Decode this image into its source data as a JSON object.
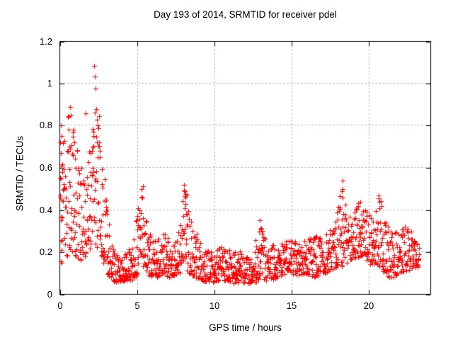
{
  "chart_data": {
    "type": "scatter",
    "title": "Day 193 of 2014, SRMTID for receiver pdel",
    "xlabel": "GPS time / hours",
    "ylabel": "SRMTID / TECUs",
    "xlim": [
      0,
      24
    ],
    "ylim": [
      0,
      1.2
    ],
    "x_ticks": [
      0,
      5,
      10,
      15,
      20
    ],
    "x_tick_labels": [
      "0",
      "5",
      "10",
      "15",
      "20"
    ],
    "y_ticks": [
      0,
      0.2,
      0.4,
      0.6,
      0.8,
      1,
      1.2
    ],
    "y_tick_labels": [
      "0",
      "0.2",
      "0.4",
      "0.6",
      "0.8",
      "1",
      "1.2"
    ],
    "grid": true,
    "legend": "none",
    "colors": {
      "marker": "#ff0000",
      "grid": "#9a9a9a",
      "axis": "#000000",
      "background": "#ffffff"
    },
    "marker": {
      "shape": "plus",
      "size": 7,
      "stroke": 1
    },
    "series": [
      {
        "name": "SRMTID receiver pdel",
        "description": "Dense 30-s scatter: high variable values 0.15-1.1 TECU during hours 0-3 (peak 1.08 near hour 2.2), quiet 0.05-0.2 hours 3-5, bursts to ~0.5 at hours 5.3 and 8.1, low 0.05-0.25 hours 9-18, broad bump 0.15-0.55 hours 18-21, tail 0.1-0.3 to hour 23.2",
        "generator": {
          "seed": 193,
          "t_start": 0.02,
          "t_end": 23.25,
          "step_hours": 0.0155,
          "skew_exponent": 1.5,
          "envelope_anchors": [
            [
              0.0,
              0.14,
              0.8
            ],
            [
              0.25,
              0.16,
              0.72
            ],
            [
              0.55,
              0.18,
              0.88
            ],
            [
              0.9,
              0.18,
              0.8
            ],
            [
              1.3,
              0.16,
              0.6
            ],
            [
              1.7,
              0.18,
              0.68
            ],
            [
              2.05,
              0.22,
              0.8
            ],
            [
              2.25,
              0.25,
              1.1
            ],
            [
              2.45,
              0.2,
              0.9
            ],
            [
              2.8,
              0.15,
              0.68
            ],
            [
              3.1,
              0.09,
              0.4
            ],
            [
              3.5,
              0.06,
              0.2
            ],
            [
              4.1,
              0.06,
              0.18
            ],
            [
              4.7,
              0.07,
              0.24
            ],
            [
              5.1,
              0.1,
              0.45
            ],
            [
              5.35,
              0.12,
              0.52
            ],
            [
              5.7,
              0.09,
              0.3
            ],
            [
              6.2,
              0.08,
              0.25
            ],
            [
              6.7,
              0.09,
              0.3
            ],
            [
              7.2,
              0.08,
              0.26
            ],
            [
              7.7,
              0.1,
              0.3
            ],
            [
              8.05,
              0.12,
              0.52
            ],
            [
              8.35,
              0.1,
              0.45
            ],
            [
              8.8,
              0.08,
              0.3
            ],
            [
              9.3,
              0.06,
              0.22
            ],
            [
              9.9,
              0.06,
              0.2
            ],
            [
              10.5,
              0.07,
              0.24
            ],
            [
              11.1,
              0.05,
              0.2
            ],
            [
              11.7,
              0.06,
              0.22
            ],
            [
              12.2,
              0.05,
              0.19
            ],
            [
              12.75,
              0.06,
              0.28
            ],
            [
              13.0,
              0.07,
              0.35
            ],
            [
              13.5,
              0.06,
              0.24
            ],
            [
              14.1,
              0.08,
              0.24
            ],
            [
              14.7,
              0.1,
              0.27
            ],
            [
              15.3,
              0.09,
              0.25
            ],
            [
              15.9,
              0.1,
              0.26
            ],
            [
              16.5,
              0.08,
              0.28
            ],
            [
              17.1,
              0.1,
              0.28
            ],
            [
              17.7,
              0.12,
              0.32
            ],
            [
              18.25,
              0.13,
              0.55
            ],
            [
              18.6,
              0.15,
              0.36
            ],
            [
              19.1,
              0.17,
              0.42
            ],
            [
              19.5,
              0.18,
              0.45
            ],
            [
              19.9,
              0.15,
              0.4
            ],
            [
              20.3,
              0.13,
              0.36
            ],
            [
              20.65,
              0.13,
              0.48
            ],
            [
              21.0,
              0.1,
              0.38
            ],
            [
              21.4,
              0.07,
              0.3
            ],
            [
              21.9,
              0.1,
              0.3
            ],
            [
              22.4,
              0.11,
              0.33
            ],
            [
              22.9,
              0.12,
              0.3
            ],
            [
              23.25,
              0.13,
              0.28
            ]
          ]
        },
        "extra_points": [
          [
            0.02,
            0.47
          ],
          [
            0.03,
            0.72
          ],
          [
            0.05,
            0.55
          ],
          [
            0.06,
            0.8
          ],
          [
            0.07,
            0.35
          ],
          [
            0.08,
            0.67
          ],
          [
            0.1,
            0.75
          ],
          [
            0.12,
            0.45
          ],
          [
            0.15,
            0.58
          ],
          [
            0.58,
            0.78
          ],
          [
            0.62,
            0.7
          ],
          [
            0.66,
            0.89
          ],
          [
            0.7,
            0.85
          ],
          [
            0.86,
            0.66
          ],
          [
            0.95,
            0.72
          ],
          [
            1.05,
            0.6
          ],
          [
            1.65,
            0.86
          ],
          [
            2.1,
            0.68
          ],
          [
            2.15,
            0.6
          ],
          [
            2.18,
            0.75
          ],
          [
            2.24,
            1.085
          ],
          [
            2.26,
            1.035
          ],
          [
            2.3,
            0.975
          ],
          [
            2.33,
            0.55
          ],
          [
            2.35,
            0.88
          ],
          [
            2.42,
            0.83
          ],
          [
            2.47,
            0.8
          ],
          [
            2.52,
            0.72
          ],
          [
            2.6,
            0.65
          ],
          [
            3.0,
            0.45
          ],
          [
            3.05,
            0.38
          ],
          [
            5.3,
            0.5
          ],
          [
            5.33,
            0.46
          ],
          [
            8.05,
            0.52
          ],
          [
            8.08,
            0.49
          ],
          [
            8.12,
            0.46
          ],
          [
            8.15,
            0.43
          ],
          [
            8.18,
            0.38
          ],
          [
            12.95,
            0.35
          ],
          [
            12.98,
            0.31
          ],
          [
            18.28,
            0.54
          ],
          [
            18.3,
            0.5
          ],
          [
            18.32,
            0.46
          ],
          [
            19.32,
            0.42
          ],
          [
            19.45,
            0.44
          ],
          [
            20.62,
            0.47
          ],
          [
            20.66,
            0.44
          ],
          [
            20.7,
            0.41
          ]
        ]
      }
    ]
  }
}
